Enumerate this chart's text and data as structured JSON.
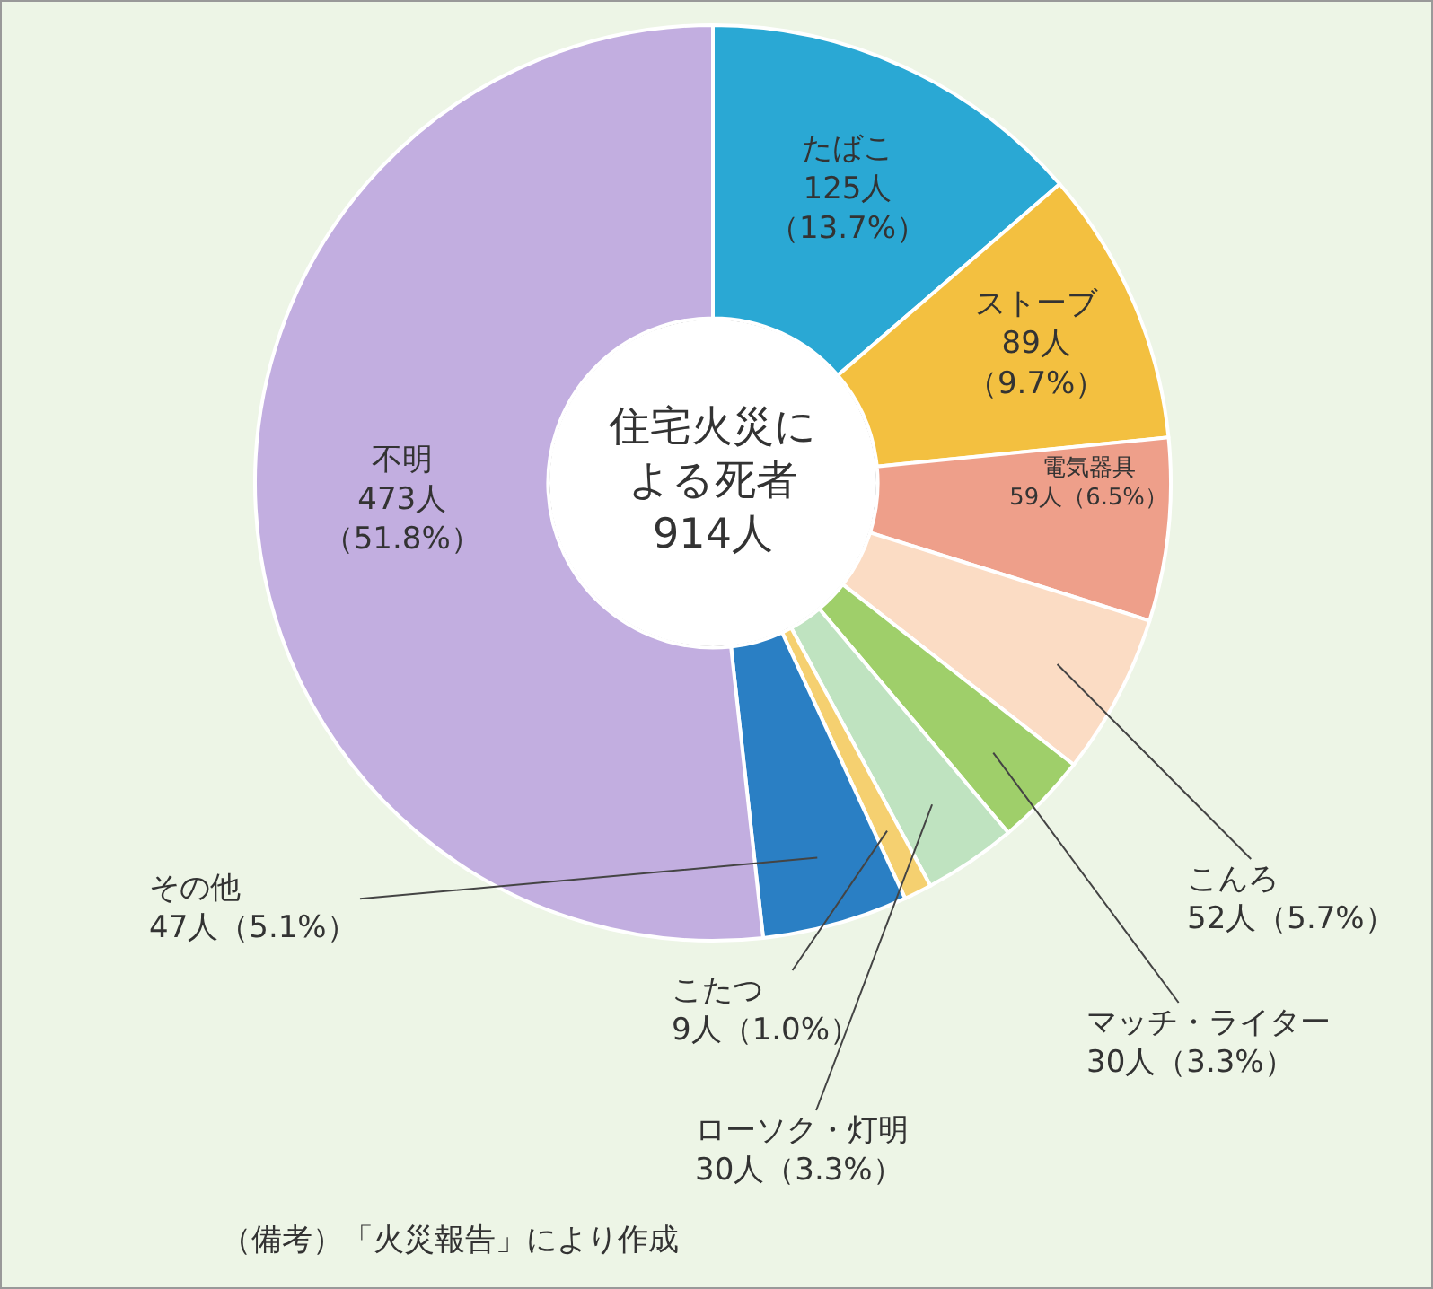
{
  "chart_data": {
    "type": "donut",
    "title": "住宅火災による死者 914人",
    "categories": [
      "たばこ",
      "ストーブ",
      "電気器具",
      "こんろ",
      "マッチ・ライター",
      "ローソク・灯明",
      "こたつ",
      "その他",
      "不明"
    ],
    "values": [
      125,
      89,
      59,
      52,
      30,
      30,
      9,
      47,
      473
    ],
    "value_labels": [
      "125人（13.7%）",
      "89人（9.7%）",
      "59人（6.5%）",
      "52人（5.7%）",
      "30人（3.3%）",
      "30人（3.3%）",
      "9人（1.0%）",
      "47人（5.1%）",
      "473人（51.8%）"
    ],
    "colors": [
      "#2aa8d4",
      "#f3c040",
      "#ee9f8a",
      "#fbdcc4",
      "#9fcf6a",
      "#bfe3c0",
      "#f5d070",
      "#2a7fc4",
      "#c2aee0"
    ],
    "annotations": [
      "（備考）「火災報告」により作成"
    ],
    "legend": false
  }
}
